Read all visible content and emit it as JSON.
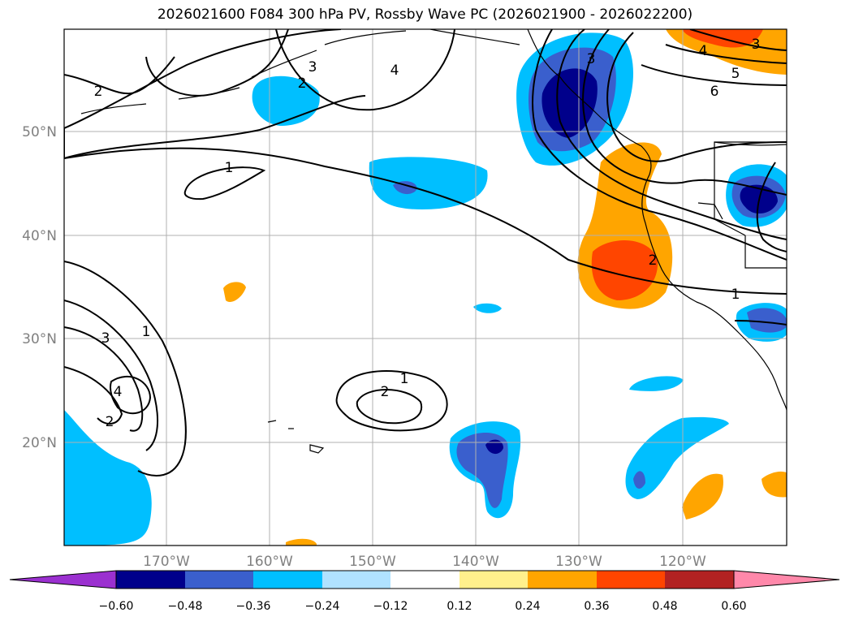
{
  "title": "2026021600 F084 300 hPa PV, Rossby Wave PC (2026021900 - 2026022200)",
  "map": {
    "lat_labels": [
      "50°N",
      "40°N",
      "30°N",
      "20°N"
    ],
    "lon_labels": [
      "170°W",
      "160°W",
      "150°W",
      "140°W",
      "130°W",
      "120°W"
    ]
  },
  "contour_labels": [
    "2",
    "3",
    "4",
    "3",
    "5",
    "6",
    "1",
    "1",
    "3",
    "1",
    "4",
    "2",
    "2",
    "1",
    "2",
    "2",
    "3",
    "4"
  ],
  "colorbar": {
    "ticks": [
      "−0.60",
      "−0.48",
      "−0.36",
      "−0.24",
      "−0.12",
      "0.12",
      "0.24",
      "0.36",
      "0.48",
      "0.60"
    ],
    "colors": [
      "#9b30d0",
      "#00008b",
      "#3a5fcd",
      "#00bfff",
      "#b0e2ff",
      "#ffffff",
      "#fff08c",
      "#ffa500",
      "#ff4500",
      "#b22222",
      "#ff88aa"
    ]
  }
}
